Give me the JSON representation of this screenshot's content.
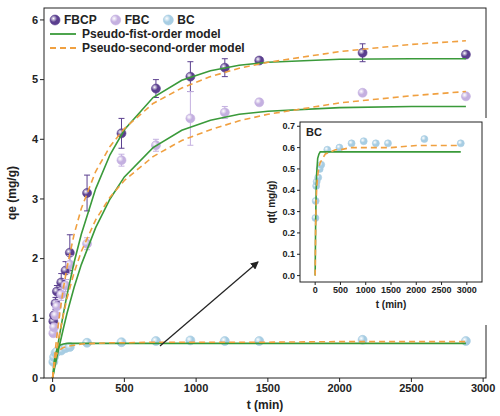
{
  "chart_data": [
    {
      "type": "scatter",
      "xlabel": "t (min)",
      "ylabel": "qe (mg/g)",
      "xlim": [
        -60,
        3020
      ],
      "ylim": [
        0,
        6.2
      ],
      "xticks": [
        0,
        500,
        1000,
        1500,
        2000,
        2500,
        3000
      ],
      "yticks": [
        0,
        1,
        2,
        3,
        4,
        5,
        6
      ],
      "grid": false,
      "legend": "upper left",
      "series": [
        {
          "name": "FBCP",
          "type": "scatter",
          "marker": "circle",
          "color": "#5b3f8f",
          "x": [
            5,
            10,
            20,
            30,
            60,
            90,
            120,
            240,
            480,
            720,
            960,
            1200,
            1440,
            2160,
            2880
          ],
          "values": [
            0.95,
            1.05,
            1.25,
            1.45,
            1.6,
            1.8,
            2.1,
            3.1,
            4.1,
            4.85,
            5.05,
            5.2,
            5.32,
            5.45,
            5.42
          ],
          "errors": [
            0.05,
            0.05,
            0.1,
            0.1,
            0.15,
            0.15,
            0.3,
            0.3,
            0.25,
            0.15,
            0.25,
            0.15,
            0.05,
            0.15,
            0.05
          ]
        },
        {
          "name": "FBC",
          "type": "scatter",
          "marker": "circle",
          "color": "#c4b0e0",
          "x": [
            5,
            10,
            20,
            30,
            60,
            90,
            120,
            240,
            480,
            720,
            960,
            1200,
            1440,
            2160,
            2880
          ],
          "values": [
            0.75,
            0.85,
            1.05,
            1.2,
            1.4,
            1.55,
            1.9,
            2.25,
            3.65,
            3.9,
            4.35,
            4.45,
            4.62,
            4.78,
            4.72
          ],
          "errors": [
            0.05,
            0.05,
            0.05,
            0.1,
            0.1,
            0.1,
            0.15,
            0.1,
            0.1,
            0.1,
            0.45,
            0.1,
            0.05,
            0.05,
            0.05
          ]
        },
        {
          "name": "BC",
          "type": "scatter",
          "marker": "circle",
          "color": "#a7cde3",
          "x": [
            5,
            10,
            20,
            30,
            60,
            90,
            120,
            240,
            480,
            720,
            960,
            1200,
            1440,
            2160,
            2880
          ],
          "values": [
            0.27,
            0.35,
            0.42,
            0.44,
            0.46,
            0.5,
            0.52,
            0.59,
            0.6,
            0.62,
            0.63,
            0.62,
            0.62,
            0.64,
            0.62
          ]
        },
        {
          "name": "Pseudo-fist-order model",
          "type": "line",
          "line_style": "solid",
          "color": "#3a9a3a",
          "x": [
            0,
            10,
            20,
            30,
            50,
            75,
            100,
            150,
            200,
            300,
            400,
            500,
            700,
            900,
            1100,
            1300,
            1500,
            2000,
            2500,
            2880
          ],
          "values": [
            0,
            0.16,
            0.31,
            0.46,
            0.74,
            1.08,
            1.39,
            1.94,
            2.41,
            3.17,
            3.74,
            4.16,
            4.7,
            4.99,
            5.15,
            5.24,
            5.29,
            5.34,
            5.35,
            5.35
          ]
        },
        {
          "name": "Pseudo-fist-order model",
          "type": "line",
          "line_style": "solid",
          "color": "#3a9a3a",
          "x": [
            0,
            10,
            20,
            30,
            50,
            75,
            100,
            150,
            200,
            300,
            400,
            500,
            700,
            900,
            1100,
            1300,
            1500,
            2000,
            2500,
            2880
          ],
          "values": [
            0,
            0.12,
            0.24,
            0.35,
            0.57,
            0.83,
            1.08,
            1.52,
            1.9,
            2.52,
            3.0,
            3.37,
            3.86,
            4.15,
            4.32,
            4.42,
            4.47,
            4.53,
            4.55,
            4.55
          ]
        },
        {
          "name": "Pseudo-fist-order model",
          "type": "line",
          "line_style": "solid",
          "color": "#3a9a3a",
          "x": [
            0,
            10,
            20,
            30,
            50,
            75,
            100,
            150,
            200,
            300,
            400,
            500,
            700,
            900,
            1100,
            1300,
            1500,
            2000,
            2500,
            2880
          ],
          "values": [
            0,
            0.26,
            0.4,
            0.48,
            0.55,
            0.57,
            0.58,
            0.58,
            0.58,
            0.58,
            0.58,
            0.58,
            0.58,
            0.58,
            0.58,
            0.58,
            0.58,
            0.58,
            0.58,
            0.58
          ]
        },
        {
          "name": "Pseudo-second-order model",
          "type": "line",
          "line_style": "dashed",
          "color": "#f0a040",
          "x": [
            0,
            10,
            20,
            30,
            50,
            75,
            100,
            150,
            200,
            300,
            400,
            500,
            700,
            900,
            1100,
            1300,
            1500,
            2000,
            2500,
            2880
          ],
          "values": [
            0,
            0.26,
            0.49,
            0.71,
            1.09,
            1.5,
            1.85,
            2.41,
            2.84,
            3.46,
            3.88,
            4.18,
            4.6,
            4.86,
            5.05,
            5.19,
            5.29,
            5.47,
            5.59,
            5.65
          ]
        },
        {
          "name": "Pseudo-second-order model",
          "type": "line",
          "line_style": "dashed",
          "color": "#f0a040",
          "x": [
            0,
            10,
            20,
            30,
            50,
            75,
            100,
            150,
            200,
            300,
            400,
            500,
            700,
            900,
            1100,
            1300,
            1500,
            2000,
            2500,
            2880
          ],
          "values": [
            0,
            0.17,
            0.33,
            0.48,
            0.76,
            1.06,
            1.33,
            1.77,
            2.12,
            2.65,
            3.03,
            3.31,
            3.71,
            3.98,
            4.16,
            4.31,
            4.42,
            4.61,
            4.73,
            4.8
          ]
        },
        {
          "name": "Pseudo-second-order model",
          "type": "line",
          "line_style": "dashed",
          "color": "#f0a040",
          "x": [
            0,
            10,
            20,
            30,
            50,
            75,
            100,
            150,
            200,
            300,
            400,
            500,
            700,
            900,
            1100,
            1300,
            1500,
            2000,
            2500,
            2880
          ],
          "values": [
            0,
            0.24,
            0.35,
            0.41,
            0.47,
            0.51,
            0.53,
            0.55,
            0.57,
            0.58,
            0.59,
            0.59,
            0.6,
            0.6,
            0.6,
            0.6,
            0.6,
            0.61,
            0.61,
            0.61
          ]
        }
      ]
    },
    {
      "type": "scatter",
      "title": "BC",
      "xlabel": "t (min)",
      "ylabel": "qt( mg/g)",
      "xlim": [
        -300,
        3300
      ],
      "ylim": [
        -0.03,
        0.72
      ],
      "xticks": [
        0,
        500,
        1000,
        1500,
        2000,
        2500,
        3000
      ],
      "yticks": [
        {
          "value": 0,
          "label": "0.0"
        },
        0.1,
        0.2,
        0.3,
        0.4,
        0.5,
        0.6,
        0.7
      ],
      "grid": false,
      "series": [
        {
          "name": "BC",
          "type": "scatter",
          "marker": "circle",
          "color": "#a7cde3",
          "x": [
            5,
            10,
            20,
            30,
            60,
            90,
            120,
            240,
            480,
            720,
            960,
            1200,
            1440,
            2160,
            2880
          ],
          "values": [
            0.27,
            0.35,
            0.42,
            0.44,
            0.46,
            0.5,
            0.52,
            0.59,
            0.6,
            0.62,
            0.63,
            0.62,
            0.62,
            0.64,
            0.62
          ]
        },
        {
          "name": "Pseudo-fist-order model",
          "type": "line",
          "line_style": "solid",
          "color": "#3a9a3a",
          "x": [
            0,
            10,
            20,
            30,
            50,
            75,
            100,
            150,
            200,
            300,
            400,
            500,
            700,
            900,
            1100,
            1300,
            1500,
            2000,
            2500,
            2880
          ],
          "values": [
            0,
            0.26,
            0.4,
            0.48,
            0.55,
            0.57,
            0.58,
            0.58,
            0.58,
            0.58,
            0.58,
            0.58,
            0.58,
            0.58,
            0.58,
            0.58,
            0.58,
            0.58,
            0.58,
            0.58
          ]
        },
        {
          "name": "Pseudo-second-order model",
          "type": "line",
          "line_style": "dashed",
          "color": "#f0a040",
          "x": [
            0,
            10,
            20,
            30,
            50,
            75,
            100,
            150,
            200,
            300,
            400,
            500,
            700,
            900,
            1100,
            1300,
            1500,
            2000,
            2500,
            2880
          ],
          "values": [
            0,
            0.24,
            0.35,
            0.41,
            0.47,
            0.51,
            0.53,
            0.55,
            0.57,
            0.58,
            0.59,
            0.59,
            0.6,
            0.6,
            0.6,
            0.6,
            0.6,
            0.61,
            0.61,
            0.61
          ]
        }
      ]
    }
  ]
}
